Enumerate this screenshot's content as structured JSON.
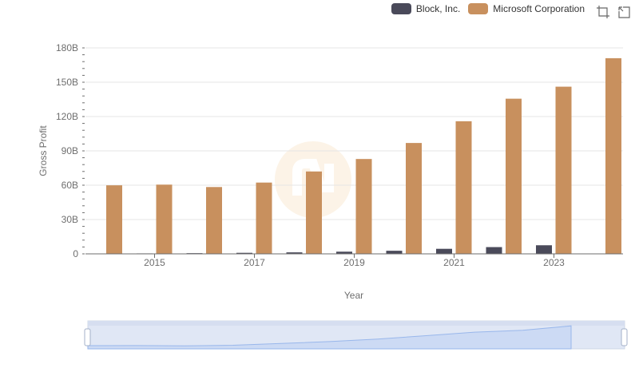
{
  "legend": {
    "series0": "Block, Inc.",
    "series1": "Microsoft Corporation"
  },
  "toolbar": {
    "icons": [
      "zoom-select-icon",
      "zoom-reset-icon"
    ]
  },
  "colors": {
    "block": "#4a4a5a",
    "microsoft": "#c8905e"
  },
  "chart_data": {
    "type": "bar",
    "xlabel": "Year",
    "ylabel": "Gross Profit",
    "ylim": [
      0,
      180
    ],
    "yunit": "B",
    "yticks": [
      "0",
      "30B",
      "60B",
      "90B",
      "120B",
      "150B",
      "180B"
    ],
    "xticks": [
      "2015",
      "2017",
      "2019",
      "2021",
      "2023"
    ],
    "categories": [
      "2014",
      "2015",
      "2016",
      "2017",
      "2018",
      "2019",
      "2020",
      "2021",
      "2022",
      "2023",
      "2024"
    ],
    "series": [
      {
        "name": "Block, Inc.",
        "values": [
          0.3,
          0.4,
          0.6,
          0.9,
          1.3,
          1.9,
          2.7,
          4.4,
          5.9,
          7.5,
          0
        ]
      },
      {
        "name": "Microsoft Corporation",
        "values": [
          59.9,
          60.5,
          58.4,
          62.3,
          72.0,
          82.9,
          96.9,
          115.9,
          135.6,
          146.1,
          171.0
        ]
      }
    ],
    "grid": true,
    "legend_position": "top-right",
    "slider": true
  }
}
